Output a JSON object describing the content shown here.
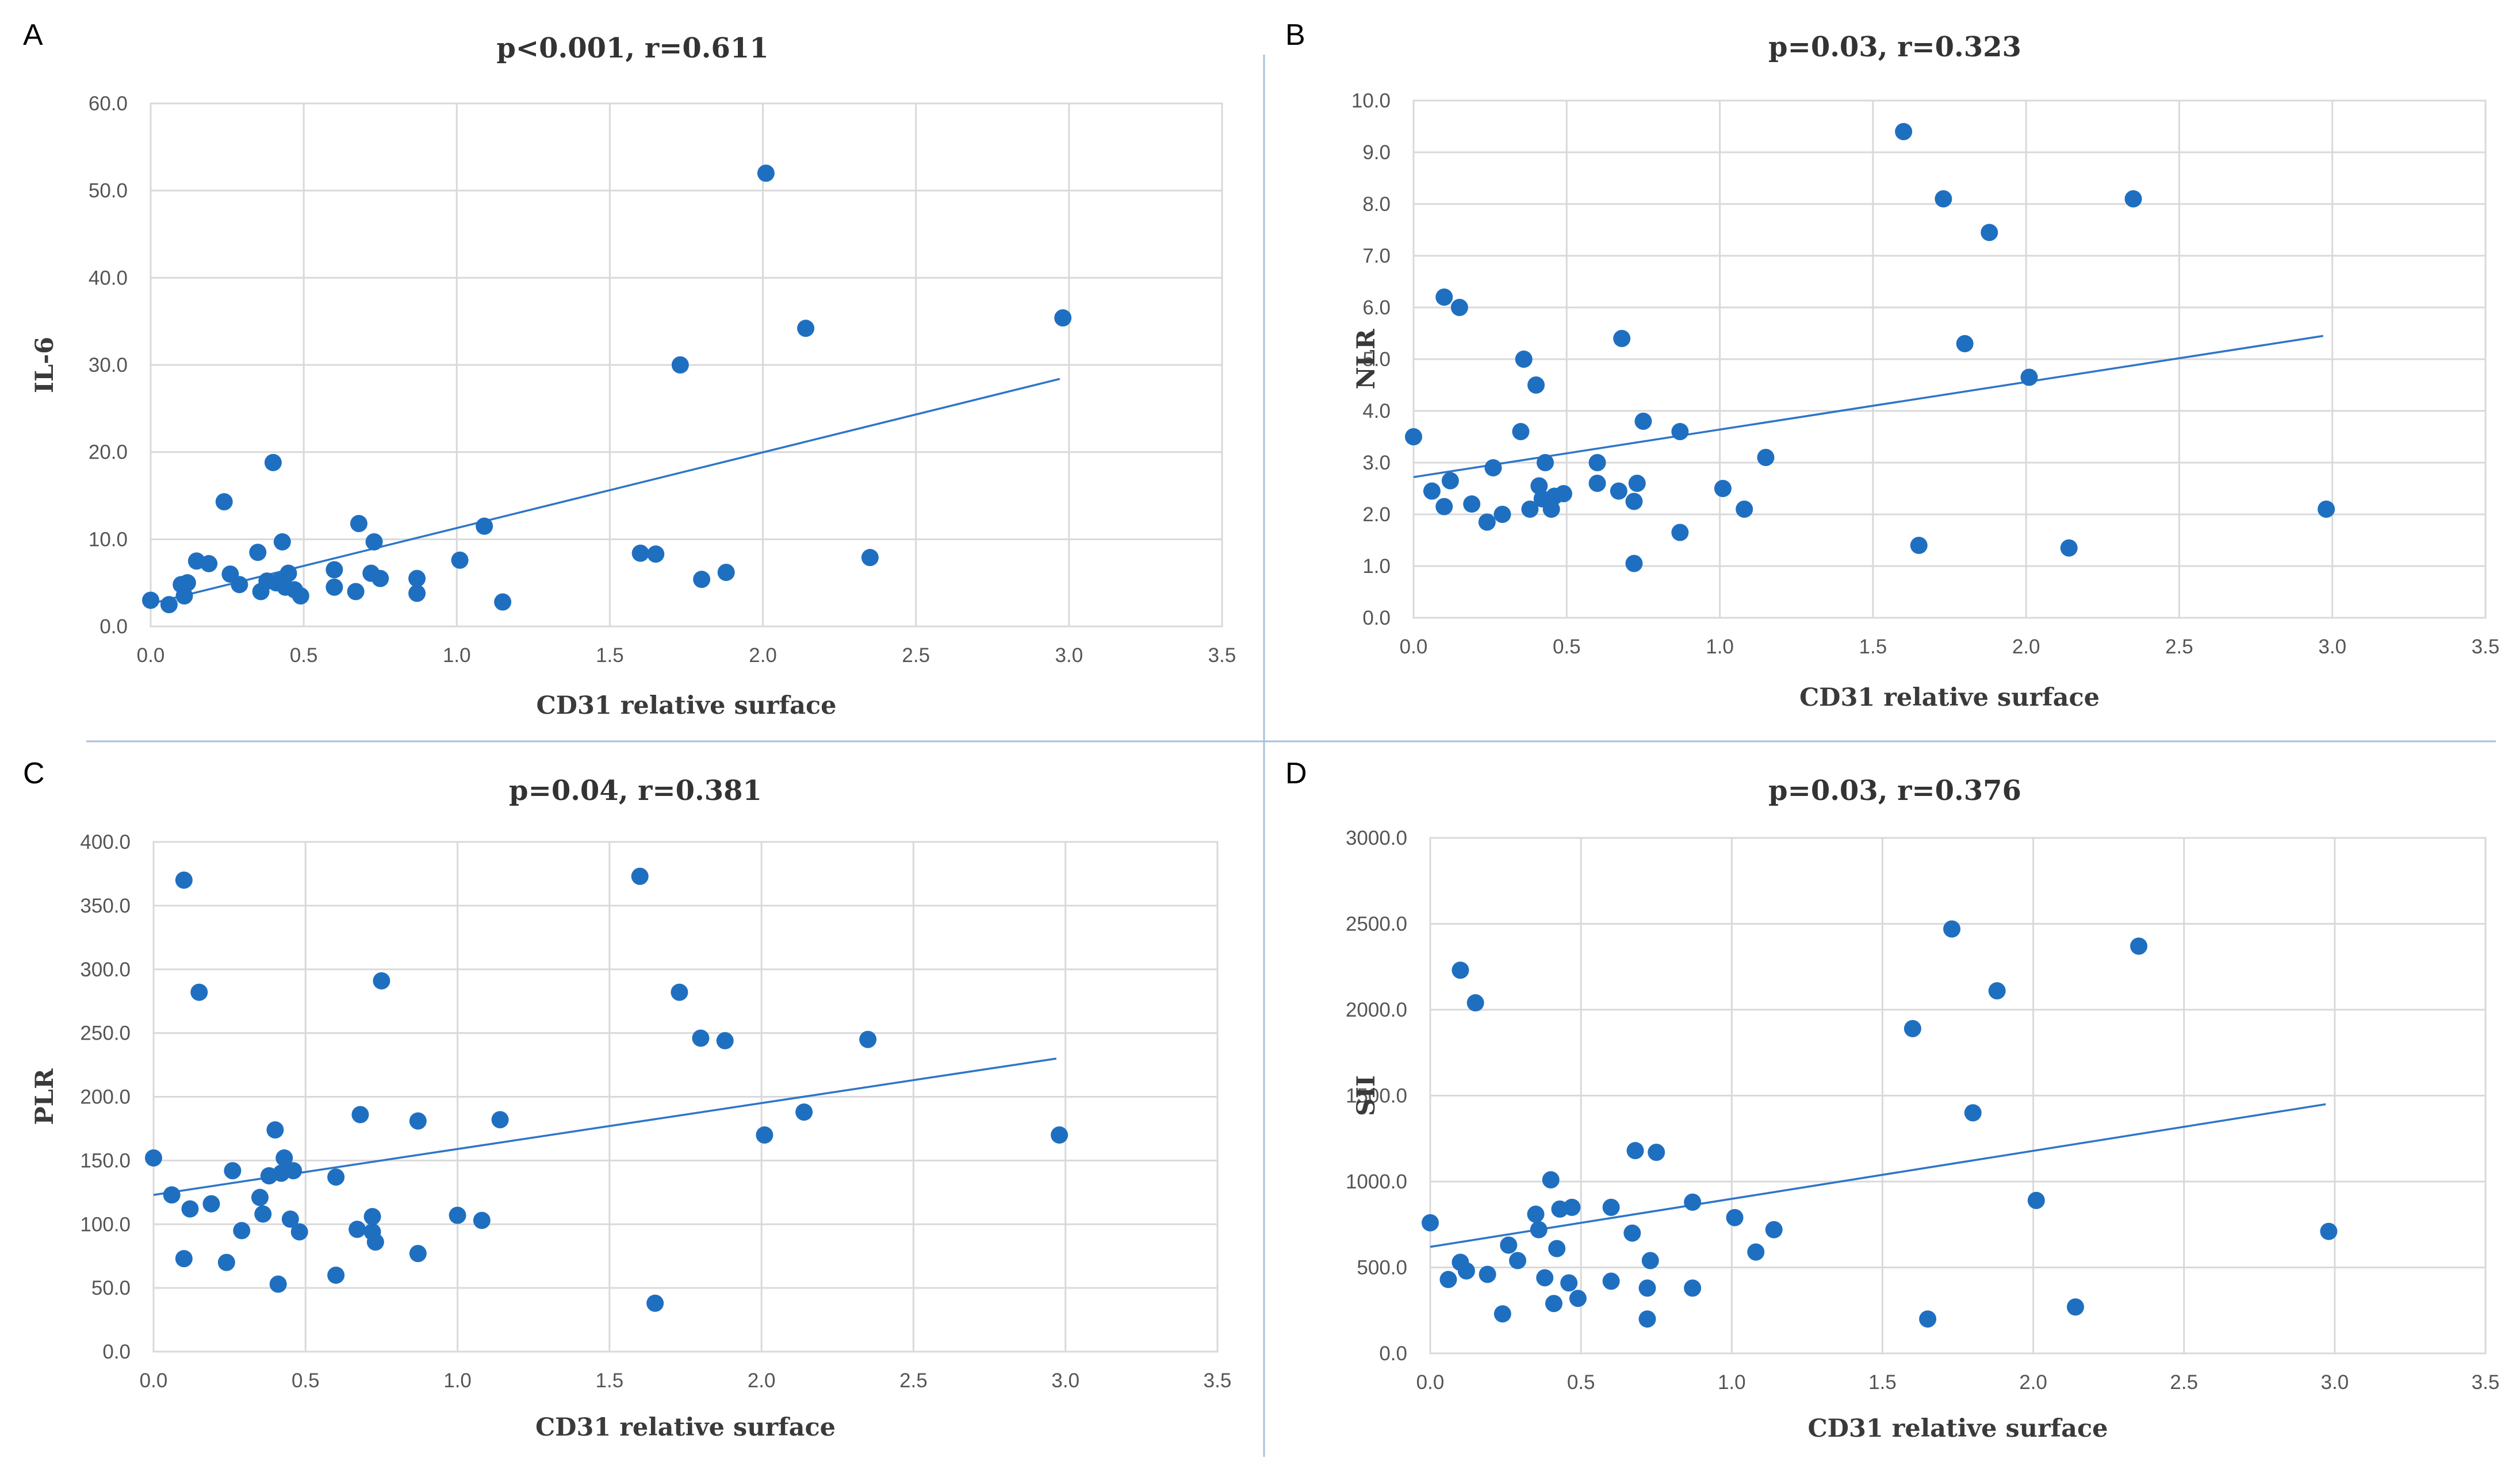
{
  "chart_data": [
    {
      "panel": "A",
      "type": "scatter",
      "title": "p<0.001, r=0.611",
      "xlabel": "CD31 relative surface",
      "ylabel": "IL-6",
      "xlim": [
        0,
        3.5
      ],
      "ylim": [
        0,
        60
      ],
      "xticks": [
        0,
        0.5,
        1.0,
        1.5,
        2.0,
        2.5,
        3.0,
        3.5
      ],
      "yticks": [
        0,
        10,
        20,
        30,
        40,
        50,
        60
      ],
      "xtick_labels": [
        "0.0",
        "0.5",
        "1.0",
        "1.5",
        "2.0",
        "2.5",
        "3.0",
        "3.5"
      ],
      "ytick_labels": [
        "0.0",
        "10.0",
        "20.0",
        "30.0",
        "40.0",
        "50.0",
        "60.0"
      ],
      "grid": true,
      "points": [
        [
          0.0,
          3.0
        ],
        [
          0.06,
          2.5
        ],
        [
          0.1,
          4.8
        ],
        [
          0.11,
          3.5
        ],
        [
          0.12,
          5.0
        ],
        [
          0.15,
          7.5
        ],
        [
          0.19,
          7.2
        ],
        [
          0.24,
          14.3
        ],
        [
          0.26,
          6.0
        ],
        [
          0.29,
          4.8
        ],
        [
          0.35,
          8.5
        ],
        [
          0.36,
          4.0
        ],
        [
          0.38,
          5.2
        ],
        [
          0.4,
          18.8
        ],
        [
          0.41,
          5.0
        ],
        [
          0.42,
          5.2
        ],
        [
          0.43,
          9.7
        ],
        [
          0.44,
          4.5
        ],
        [
          0.45,
          6.1
        ],
        [
          0.47,
          4.2
        ],
        [
          0.49,
          3.5
        ],
        [
          0.6,
          6.5
        ],
        [
          0.6,
          4.5
        ],
        [
          0.67,
          4.0
        ],
        [
          0.68,
          11.8
        ],
        [
          0.72,
          6.1
        ],
        [
          0.73,
          9.7
        ],
        [
          0.75,
          5.5
        ],
        [
          0.87,
          5.5
        ],
        [
          0.87,
          3.8
        ],
        [
          1.01,
          7.6
        ],
        [
          1.09,
          11.5
        ],
        [
          1.15,
          2.8
        ],
        [
          1.6,
          8.4
        ],
        [
          1.65,
          8.3
        ],
        [
          1.73,
          30.0
        ],
        [
          1.8,
          5.4
        ],
        [
          1.88,
          6.2
        ],
        [
          2.01,
          52.0
        ],
        [
          2.14,
          34.2
        ],
        [
          2.35,
          7.9
        ],
        [
          2.98,
          35.4
        ]
      ],
      "trendline": {
        "x": [
          0.0,
          2.97
        ],
        "y": [
          2.6,
          28.4
        ]
      }
    },
    {
      "panel": "B",
      "type": "scatter",
      "title": "p=0.03, r=0.323",
      "xlabel": "CD31 relative surface",
      "ylabel": "NLR",
      "xlim": [
        0,
        3.5
      ],
      "ylim": [
        0,
        10
      ],
      "xticks": [
        0,
        0.5,
        1.0,
        1.5,
        2.0,
        2.5,
        3.0,
        3.5
      ],
      "yticks": [
        0,
        1,
        2,
        3,
        4,
        5,
        6,
        7,
        8,
        9,
        10
      ],
      "xtick_labels": [
        "0.0",
        "0.5",
        "1.0",
        "1.5",
        "2.0",
        "2.5",
        "3.0",
        "3.5"
      ],
      "ytick_labels": [
        "0.0",
        "1.0",
        "2.0",
        "3.0",
        "4.0",
        "5.0",
        "6.0",
        "7.0",
        "8.0",
        "9.0",
        "10.0"
      ],
      "grid": true,
      "points": [
        [
          0.0,
          3.5
        ],
        [
          0.06,
          2.45
        ],
        [
          0.1,
          2.15
        ],
        [
          0.1,
          6.2
        ],
        [
          0.12,
          2.65
        ],
        [
          0.15,
          6.0
        ],
        [
          0.19,
          2.2
        ],
        [
          0.24,
          1.85
        ],
        [
          0.26,
          2.9
        ],
        [
          0.29,
          2.0
        ],
        [
          0.35,
          3.6
        ],
        [
          0.36,
          5.0
        ],
        [
          0.38,
          2.1
        ],
        [
          0.4,
          4.5
        ],
        [
          0.41,
          2.55
        ],
        [
          0.42,
          2.3
        ],
        [
          0.43,
          3.0
        ],
        [
          0.45,
          2.1
        ],
        [
          0.46,
          2.35
        ],
        [
          0.49,
          2.4
        ],
        [
          0.6,
          3.0
        ],
        [
          0.6,
          2.6
        ],
        [
          0.67,
          2.45
        ],
        [
          0.68,
          5.4
        ],
        [
          0.72,
          2.25
        ],
        [
          0.72,
          1.05
        ],
        [
          0.73,
          2.6
        ],
        [
          0.75,
          3.8
        ],
        [
          0.87,
          3.6
        ],
        [
          0.87,
          1.65
        ],
        [
          1.01,
          2.5
        ],
        [
          1.08,
          2.1
        ],
        [
          1.15,
          3.1
        ],
        [
          1.6,
          9.4
        ],
        [
          1.65,
          1.4
        ],
        [
          1.73,
          8.1
        ],
        [
          1.8,
          5.3
        ],
        [
          1.88,
          7.45
        ],
        [
          2.01,
          4.65
        ],
        [
          2.14,
          1.35
        ],
        [
          2.35,
          8.1
        ],
        [
          2.98,
          2.1
        ]
      ],
      "trendline": {
        "x": [
          0.0,
          2.97
        ],
        "y": [
          2.72,
          5.45
        ]
      }
    },
    {
      "panel": "C",
      "type": "scatter",
      "title": "p=0.04, r=0.381",
      "xlabel": "CD31 relative surface",
      "ylabel": "PLR",
      "xlim": [
        0,
        3.5
      ],
      "ylim": [
        0,
        400
      ],
      "xticks": [
        0,
        0.5,
        1.0,
        1.5,
        2.0,
        2.5,
        3.0,
        3.5
      ],
      "yticks": [
        0,
        50,
        100,
        150,
        200,
        250,
        300,
        350,
        400
      ],
      "xtick_labels": [
        "0.0",
        "0.5",
        "1.0",
        "1.5",
        "2.0",
        "2.5",
        "3.0",
        "3.5"
      ],
      "ytick_labels": [
        "0.0",
        "50.0",
        "100.0",
        "150.0",
        "200.0",
        "250.0",
        "300.0",
        "350.0",
        "400.0"
      ],
      "grid": true,
      "points": [
        [
          0.0,
          152
        ],
        [
          0.06,
          123
        ],
        [
          0.1,
          73
        ],
        [
          0.1,
          370
        ],
        [
          0.12,
          112
        ],
        [
          0.15,
          282
        ],
        [
          0.19,
          116
        ],
        [
          0.24,
          70
        ],
        [
          0.26,
          142
        ],
        [
          0.29,
          95
        ],
        [
          0.35,
          121
        ],
        [
          0.36,
          108
        ],
        [
          0.38,
          138
        ],
        [
          0.4,
          174
        ],
        [
          0.41,
          53
        ],
        [
          0.42,
          140
        ],
        [
          0.43,
          152
        ],
        [
          0.45,
          104
        ],
        [
          0.46,
          142
        ],
        [
          0.48,
          94
        ],
        [
          0.6,
          137
        ],
        [
          0.6,
          60
        ],
        [
          0.67,
          96
        ],
        [
          0.68,
          186
        ],
        [
          0.72,
          94
        ],
        [
          0.72,
          106
        ],
        [
          0.73,
          86
        ],
        [
          0.75,
          291
        ],
        [
          0.87,
          181
        ],
        [
          0.87,
          77
        ],
        [
          1.0,
          107
        ],
        [
          1.08,
          103
        ],
        [
          1.14,
          182
        ],
        [
          1.6,
          373
        ],
        [
          1.65,
          38
        ],
        [
          1.73,
          282
        ],
        [
          1.8,
          246
        ],
        [
          1.88,
          244
        ],
        [
          2.01,
          170
        ],
        [
          2.14,
          188
        ],
        [
          2.35,
          245
        ],
        [
          2.98,
          170
        ]
      ],
      "trendline": {
        "x": [
          0.0,
          2.97
        ],
        "y": [
          123,
          230
        ]
      }
    },
    {
      "panel": "D",
      "type": "scatter",
      "title": "p=0.03, r=0.376",
      "xlabel": "CD31 relative surface",
      "ylabel": "SII",
      "xlim": [
        0,
        3.5
      ],
      "ylim": [
        0,
        3000
      ],
      "xticks": [
        0,
        0.5,
        1.0,
        1.5,
        2.0,
        2.5,
        3.0,
        3.5
      ],
      "yticks": [
        0,
        500,
        1000,
        1500,
        2000,
        2500,
        3000
      ],
      "xtick_labels": [
        "0.0",
        "0.5",
        "1.0",
        "1.5",
        "2.0",
        "2.5",
        "3.0",
        "3.5"
      ],
      "ytick_labels": [
        "0.0",
        "500.0",
        "1000.0",
        "1500.0",
        "2000.0",
        "2500.0",
        "3000.0"
      ],
      "grid": true,
      "points": [
        [
          0.0,
          760
        ],
        [
          0.06,
          430
        ],
        [
          0.1,
          2230
        ],
        [
          0.1,
          530
        ],
        [
          0.12,
          480
        ],
        [
          0.15,
          2040
        ],
        [
          0.19,
          460
        ],
        [
          0.24,
          230
        ],
        [
          0.26,
          630
        ],
        [
          0.29,
          540
        ],
        [
          0.35,
          810
        ],
        [
          0.36,
          720
        ],
        [
          0.38,
          440
        ],
        [
          0.4,
          1010
        ],
        [
          0.41,
          290
        ],
        [
          0.42,
          610
        ],
        [
          0.43,
          840
        ],
        [
          0.46,
          410
        ],
        [
          0.47,
          850
        ],
        [
          0.49,
          320
        ],
        [
          0.6,
          850
        ],
        [
          0.6,
          420
        ],
        [
          0.67,
          700
        ],
        [
          0.68,
          1180
        ],
        [
          0.72,
          380
        ],
        [
          0.72,
          200
        ],
        [
          0.73,
          540
        ],
        [
          0.75,
          1170
        ],
        [
          0.87,
          880
        ],
        [
          0.87,
          380
        ],
        [
          1.01,
          790
        ],
        [
          1.08,
          590
        ],
        [
          1.14,
          720
        ],
        [
          1.6,
          1890
        ],
        [
          1.65,
          200
        ],
        [
          1.73,
          2470
        ],
        [
          1.8,
          1400
        ],
        [
          1.88,
          2110
        ],
        [
          2.01,
          890
        ],
        [
          2.14,
          270
        ],
        [
          2.35,
          2370
        ],
        [
          2.98,
          710
        ]
      ],
      "trendline": {
        "x": [
          0.0,
          2.97
        ],
        "y": [
          620,
          1450
        ]
      }
    }
  ]
}
